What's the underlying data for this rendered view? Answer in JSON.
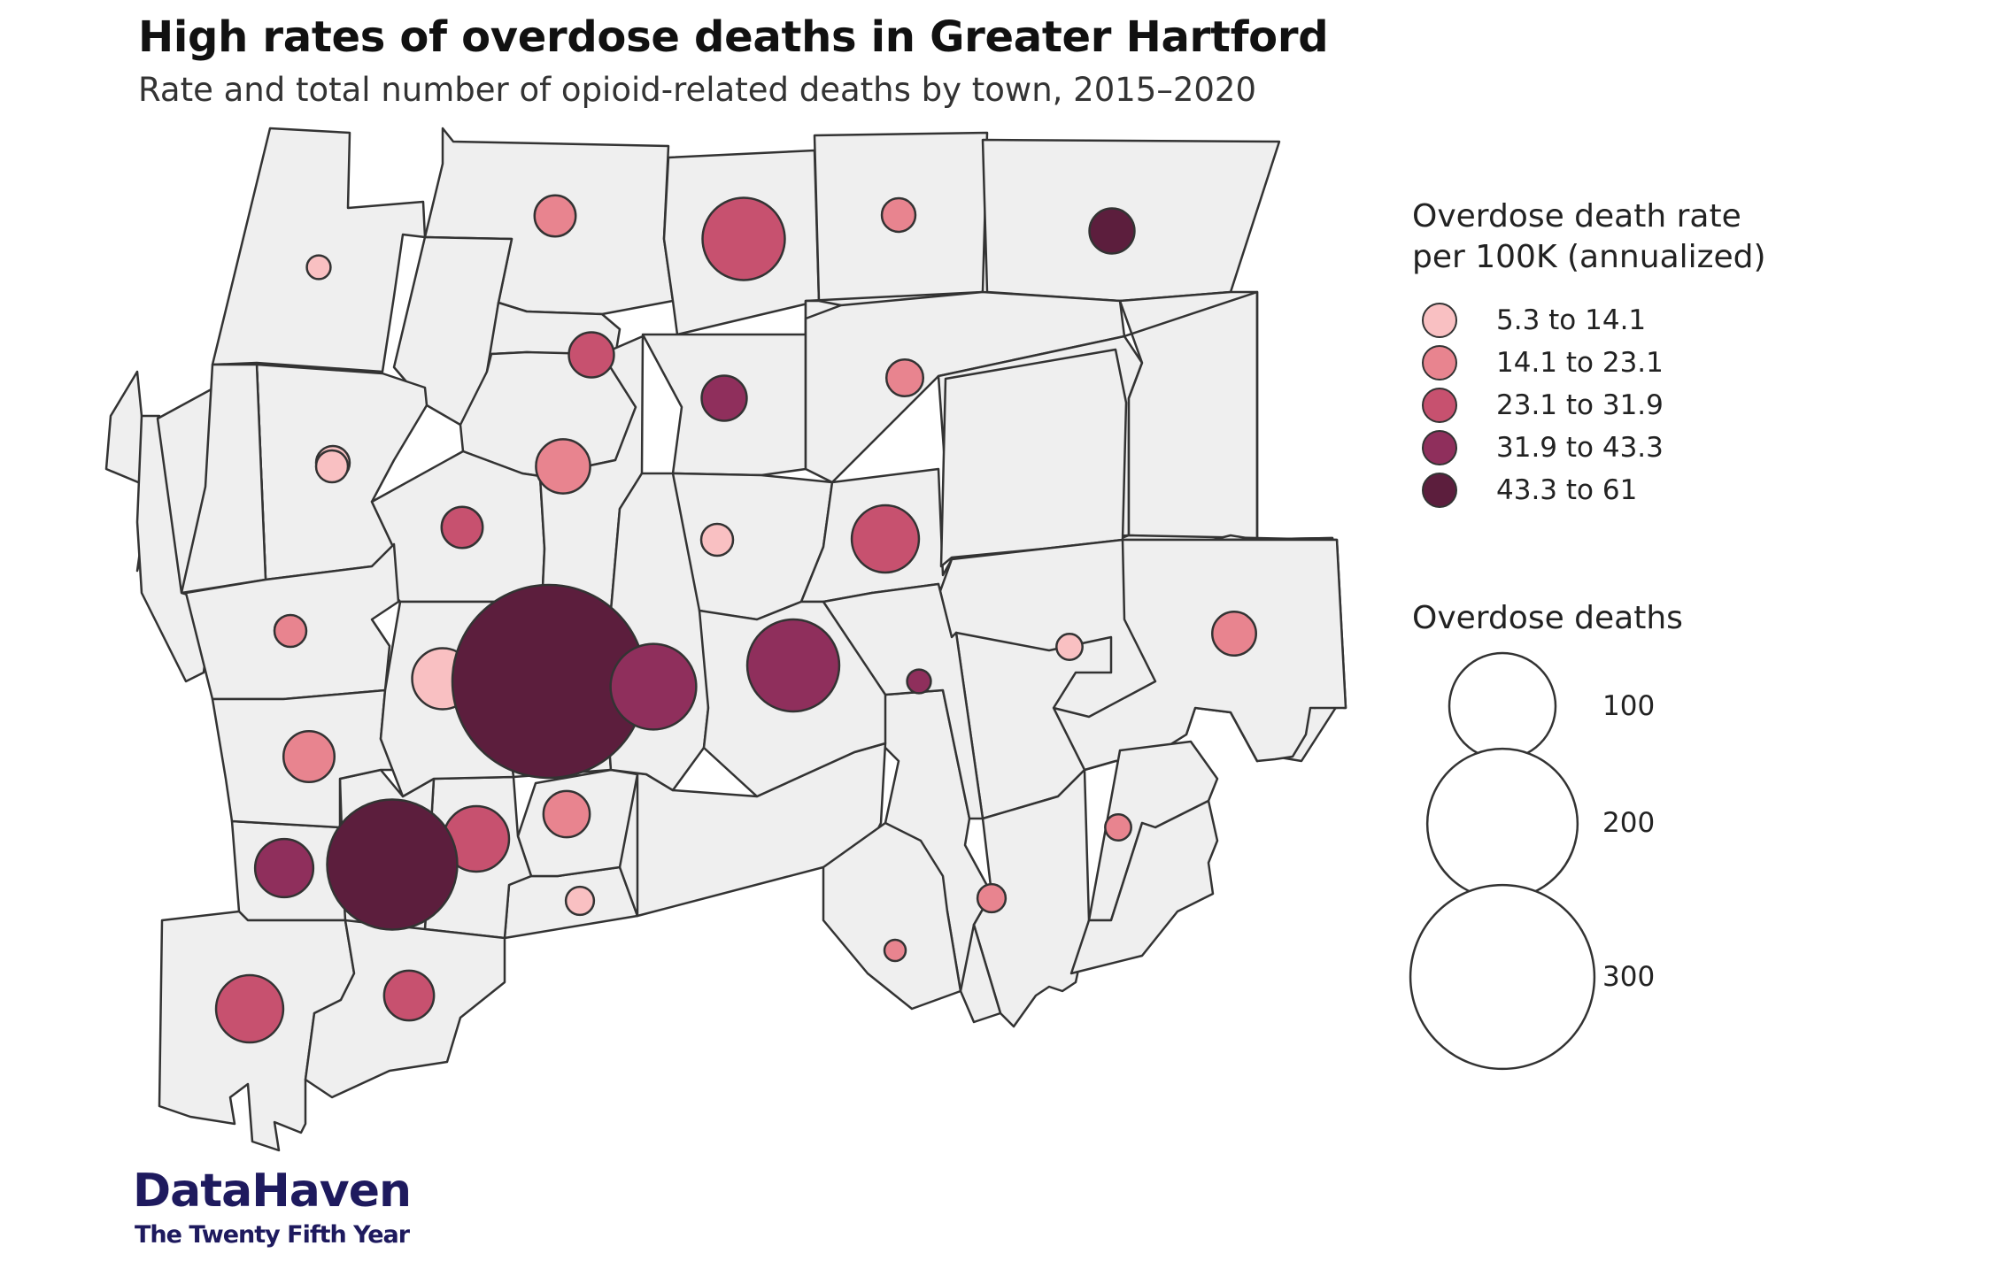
{
  "header": {
    "title": "High rates of overdose deaths in Greater Hartford",
    "subtitle": "Rate and total number of opioid-related deaths by town, 2015–2020"
  },
  "legend": {
    "rate_title_line1": "Overdose death rate",
    "rate_title_line2": "per 100K (annualized)",
    "rate_bins": [
      {
        "label": "5.3 to 14.1",
        "color": "#f9c0c2"
      },
      {
        "label": "14.1 to 23.1",
        "color": "#e8848f"
      },
      {
        "label": "23.1 to 31.9",
        "color": "#c7516f"
      },
      {
        "label": "31.9 to 43.3",
        "color": "#8f2f5c"
      },
      {
        "label": "43.3 to 61",
        "color": "#5c1e3d"
      }
    ],
    "size_title": "Overdose deaths",
    "size_labels": [
      "100",
      "200",
      "300"
    ]
  },
  "map": {
    "town_fill": "#efefef",
    "border_color": "#333333",
    "bubbles": [
      {
        "deaths": 5,
        "bin": 0
      },
      {
        "deaths": 15,
        "bin": 1
      },
      {
        "deaths": 60,
        "bin": 2
      },
      {
        "deaths": 10,
        "bin": 1
      },
      {
        "deaths": 18,
        "bin": 4
      },
      {
        "deaths": 18,
        "bin": 2
      },
      {
        "deaths": 18,
        "bin": 3
      },
      {
        "deaths": 12,
        "bin": 1
      },
      {
        "deaths": 10,
        "bin": 0
      },
      {
        "deaths": 26,
        "bin": 1
      },
      {
        "deaths": 15,
        "bin": 2
      },
      {
        "deaths": 9,
        "bin": 0
      },
      {
        "deaths": 9,
        "bin": 0
      },
      {
        "deaths": 40,
        "bin": 2
      },
      {
        "deaths": 7,
        "bin": 0
      },
      {
        "deaths": 33,
        "bin": 0
      },
      {
        "deaths": 330,
        "bin": 4
      },
      {
        "deaths": 65,
        "bin": 3
      },
      {
        "deaths": 75,
        "bin": 3
      },
      {
        "deaths": 5,
        "bin": 3
      },
      {
        "deaths": 6,
        "bin": 0
      },
      {
        "deaths": 9,
        "bin": 1
      },
      {
        "deaths": 17,
        "bin": 1
      },
      {
        "deaths": 23,
        "bin": 1
      },
      {
        "deaths": 38,
        "bin": 2
      },
      {
        "deaths": 19,
        "bin": 1
      },
      {
        "deaths": 30,
        "bin": 3
      },
      {
        "deaths": 150,
        "bin": 4
      },
      {
        "deaths": 7,
        "bin": 0
      },
      {
        "deaths": 7,
        "bin": 1
      },
      {
        "deaths": 6,
        "bin": 1
      },
      {
        "deaths": 4,
        "bin": 1
      },
      {
        "deaths": 40,
        "bin": 2
      },
      {
        "deaths": 22,
        "bin": 2
      }
    ]
  },
  "logo": {
    "main": "DataHaven",
    "sub": "The Twenty Fifth Year"
  }
}
